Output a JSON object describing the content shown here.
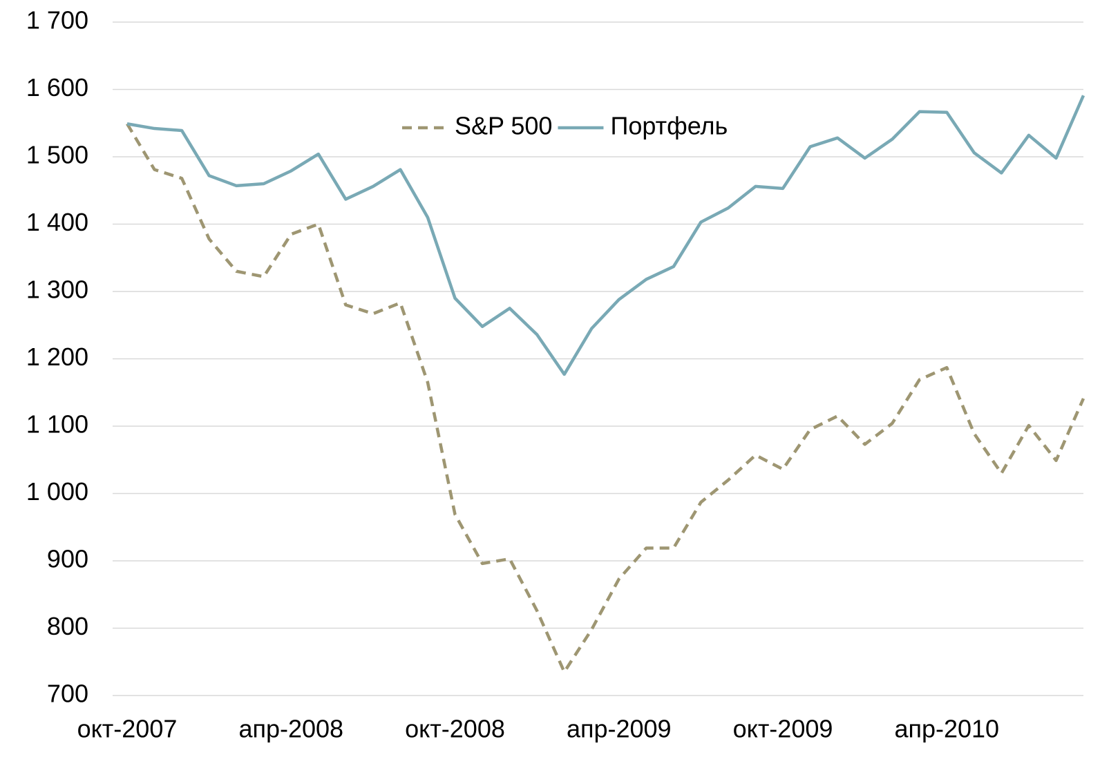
{
  "chart_data": {
    "type": "line",
    "categories": [
      "окт-2007",
      null,
      null,
      null,
      null,
      null,
      "апр-2008",
      null,
      null,
      null,
      null,
      null,
      "окт-2008",
      null,
      null,
      null,
      null,
      null,
      "апр-2009",
      null,
      null,
      null,
      null,
      null,
      "окт-2009",
      null,
      null,
      null,
      null,
      null,
      "апр-2010",
      null,
      null,
      null,
      null,
      null
    ],
    "series": [
      {
        "name": "S&P 500",
        "color": "#9e9672",
        "style": "dashed",
        "values": [
          1549,
          1481,
          1468,
          1378,
          1330,
          1322,
          1385,
          1400,
          1280,
          1267,
          1283,
          1165,
          969,
          896,
          903,
          826,
          735,
          798,
          873,
          919,
          919,
          987,
          1020,
          1057,
          1036,
          1095,
          1115,
          1073,
          1104,
          1169,
          1187,
          1089,
          1030,
          1101,
          1049,
          1141
        ]
      },
      {
        "name": "Портфель",
        "color": "#79a9b5",
        "style": "solid",
        "values": [
          1549,
          1542,
          1539,
          1472,
          1457,
          1460,
          1479,
          1504,
          1437,
          1456,
          1481,
          1410,
          1290,
          1248,
          1275,
          1236,
          1177,
          1245,
          1288,
          1318,
          1337,
          1403,
          1424,
          1456,
          1453,
          1515,
          1528,
          1498,
          1526,
          1567,
          1566,
          1506,
          1476,
          1532,
          1498,
          1591
        ]
      }
    ],
    "ylim": [
      700,
      1700
    ],
    "yticks": [
      {
        "value": 1700,
        "label": "1 700"
      },
      {
        "value": 1600,
        "label": "1 600"
      },
      {
        "value": 1500,
        "label": "1 500"
      },
      {
        "value": 1400,
        "label": "1 400"
      },
      {
        "value": 1300,
        "label": "1 300"
      },
      {
        "value": 1200,
        "label": "1 200"
      },
      {
        "value": 1100,
        "label": "1 100"
      },
      {
        "value": 1000,
        "label": "1 000"
      },
      900,
      800,
      700
    ],
    "grid": true,
    "legend": "top"
  }
}
